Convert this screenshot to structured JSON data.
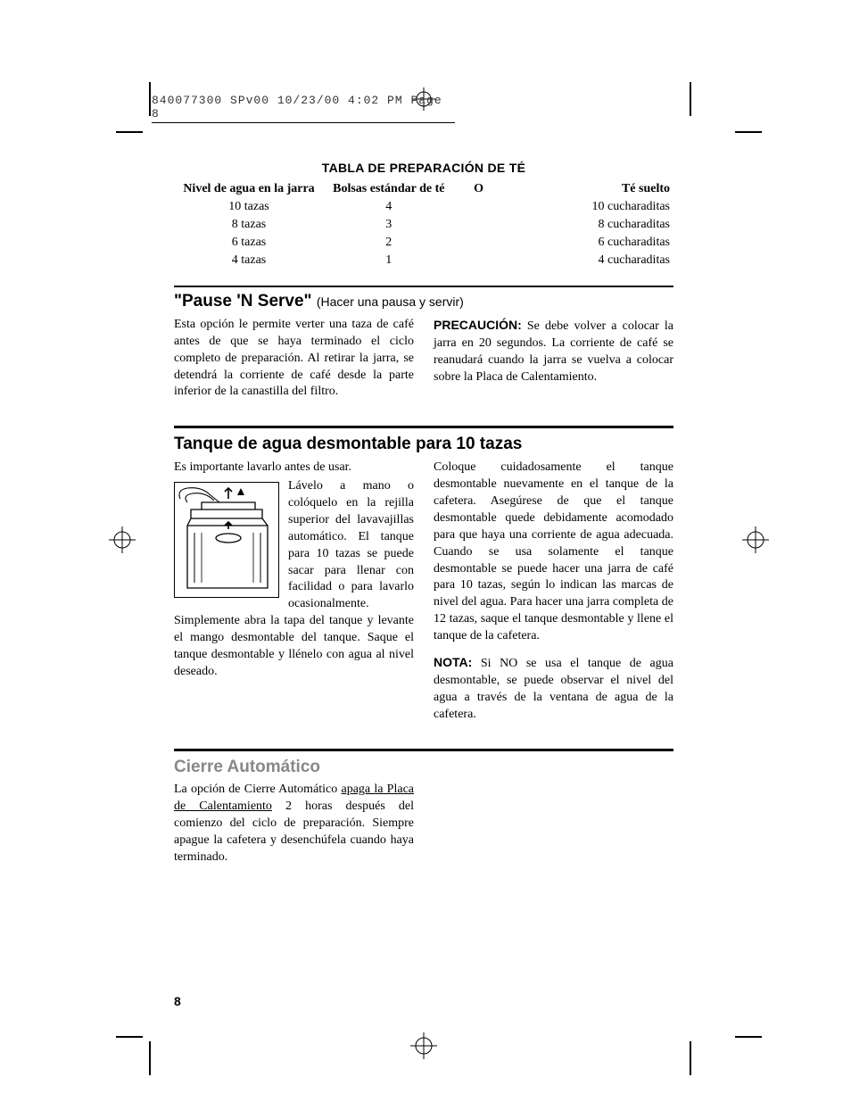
{
  "header": {
    "slug": "840077300 SPv00  10/23/00  4:02 PM  Page 8"
  },
  "table": {
    "title": "TABLA DE PREPARACIÓN DE TÉ",
    "columns": [
      "Nivel de agua en la jarra",
      "Bolsas estándar de té",
      "O",
      "Té suelto"
    ],
    "rows": [
      [
        "10 tazas",
        "4",
        "",
        "10 cucharaditas"
      ],
      [
        "8 tazas",
        "3",
        "",
        "8 cucharaditas"
      ],
      [
        "6 tazas",
        "2",
        "",
        "6 cucharaditas"
      ],
      [
        "4 tazas",
        "1",
        "",
        "4 cucharaditas"
      ]
    ]
  },
  "section1": {
    "title": "\"Pause 'N Serve\"",
    "subtitle": "(Hacer una pausa y servir)",
    "left_p1": "Esta opción le permite verter una taza de café antes de que se haya terminado el ciclo completo de preparación. Al retirar la jarra, se detendrá la corriente de café desde la parte inferior de la canastilla del filtro.",
    "right_label": "PRECAUCIÓN:",
    "right_p1": " Se debe volver a colocar la jarra en 20 segundos. La corriente de café se reanudará cuando la jarra se vuelva a colocar sobre la Placa de Calentamiento."
  },
  "section2": {
    "title": "Tanque de agua desmontable para 10 tazas",
    "left_intro": "Es importante lavarlo antes de usar.",
    "left_wrap": "Lávelo a mano o colóquelo en la rejilla superior del lavavajillas automático. El tanque para 10 tazas se puede sacar para llenar con",
    "left_p2": "facilidad o para lavarlo ocasionalmente. Simplemente abra la tapa del tanque y levante el mango desmontable del tanque. Saque el tanque desmontable y llénelo con agua al nivel deseado.",
    "right_p1": "Coloque cuidadosamente el tanque desmontable nuevamente en el tanque de la cafetera. Asegúrese de que el tanque desmontable quede debidamente acomodado para que haya una corriente de agua adecuada. Cuando se usa solamente el tanque desmontable se puede hacer una jarra de café para 10 tazas, según lo indican las marcas de nivel del agua. Para hacer una jarra completa de 12 tazas, saque el tanque desmontable y llene el tanque de la cafetera.",
    "right_label": "NOTA:",
    "right_p2": " Si NO se usa el tanque de agua desmontable, se puede observar el nivel del agua a través de la ventana de agua de la cafetera."
  },
  "section3": {
    "title": "Cierre Automático",
    "p1a": "La opción de Cierre Automático ",
    "p1_underline": "apaga la Placa de Calentamiento",
    "p1b": " 2 horas después del comienzo del ciclo de preparación. Siempre apague la cafetera y desenchúfela cuando haya terminado."
  },
  "page_number": "8"
}
